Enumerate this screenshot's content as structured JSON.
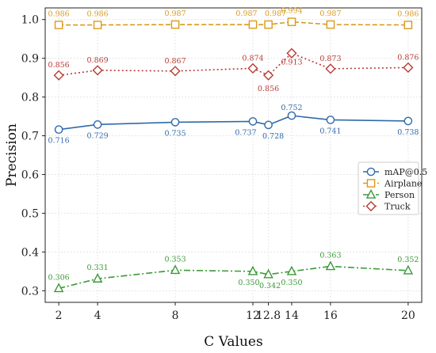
{
  "chart_data": {
    "type": "line",
    "title": "",
    "xlabel": "C Values",
    "ylabel": "Precision",
    "x": [
      2,
      4,
      8,
      12,
      12.8,
      14,
      16,
      20
    ],
    "x_tick_labels": [
      "2",
      "4",
      "8",
      "12",
      "12.8",
      "14",
      "16",
      "20"
    ],
    "y_ticks": [
      "0.3",
      "0.4",
      "0.5",
      "0.6",
      "0.7",
      "0.8",
      "0.9",
      "1.0"
    ],
    "xlim": [
      1.3,
      20.7
    ],
    "ylim": [
      0.27,
      1.03
    ],
    "grid": true,
    "legend_position": "center-right",
    "series": [
      {
        "name": "mAP@0.5",
        "color": "#2f6aa9",
        "marker": "circle",
        "line_style": "solid",
        "values": [
          0.716,
          0.729,
          0.735,
          0.737,
          0.728,
          0.752,
          0.741,
          0.738
        ],
        "labels": [
          "0.716",
          "0.729",
          "0.735",
          "0.737",
          "0.728",
          "0.752",
          "0.741",
          "0.738"
        ]
      },
      {
        "name": "Airplane",
        "color": "#d99a1c",
        "marker": "square",
        "line_style": "dashed",
        "values": [
          0.986,
          0.986,
          0.987,
          0.987,
          0.987,
          0.994,
          0.987,
          0.986
        ],
        "labels": [
          "0.986",
          "0.986",
          "0.987",
          "0.987",
          "0.987",
          "0.994",
          "0.987",
          "0.986"
        ]
      },
      {
        "name": "Person",
        "color": "#3a9a36",
        "marker": "triangle",
        "line_style": "dashdot",
        "values": [
          0.306,
          0.331,
          0.353,
          0.35,
          0.342,
          0.35,
          0.363,
          0.352
        ],
        "labels": [
          "0.306",
          "0.331",
          "0.353",
          "0.350",
          "0.342",
          "0.350",
          "0.363",
          "0.352"
        ]
      },
      {
        "name": "Truck",
        "color": "#b83a34",
        "marker": "diamond",
        "line_style": "dotted",
        "values": [
          0.856,
          0.869,
          0.867,
          0.874,
          0.856,
          0.913,
          0.873,
          0.876
        ],
        "labels": [
          "0.856",
          "0.869",
          "0.867",
          "0.874",
          "0.856",
          "0.913",
          "0.873",
          "0.876"
        ]
      }
    ]
  }
}
